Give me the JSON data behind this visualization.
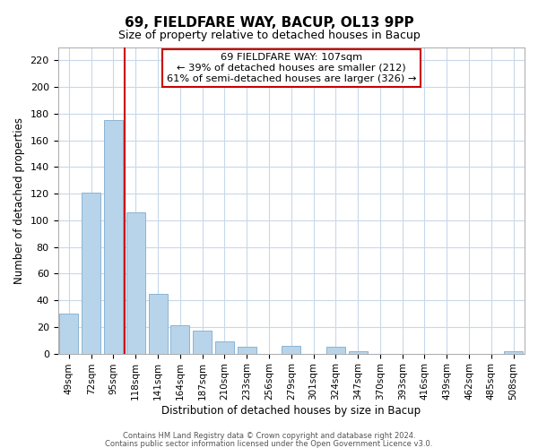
{
  "title": "69, FIELDFARE WAY, BACUP, OL13 9PP",
  "subtitle": "Size of property relative to detached houses in Bacup",
  "xlabel": "Distribution of detached houses by size in Bacup",
  "ylabel": "Number of detached properties",
  "bin_labels": [
    "49sqm",
    "72sqm",
    "95sqm",
    "118sqm",
    "141sqm",
    "164sqm",
    "187sqm",
    "210sqm",
    "233sqm",
    "256sqm",
    "279sqm",
    "301sqm",
    "324sqm",
    "347sqm",
    "370sqm",
    "393sqm",
    "416sqm",
    "439sqm",
    "462sqm",
    "485sqm",
    "508sqm"
  ],
  "bar_heights": [
    30,
    121,
    175,
    106,
    45,
    21,
    17,
    9,
    5,
    0,
    6,
    0,
    5,
    2,
    0,
    0,
    0,
    0,
    0,
    0,
    2
  ],
  "bar_color": "#b8d4ea",
  "bar_edge_color": "#8ab4d4",
  "vline_x": 2.52,
  "vline_color": "#cc0000",
  "ylim": [
    0,
    230
  ],
  "yticks": [
    0,
    20,
    40,
    60,
    80,
    100,
    120,
    140,
    160,
    180,
    200,
    220
  ],
  "annotation_title": "69 FIELDFARE WAY: 107sqm",
  "annotation_line1": "← 39% of detached houses are smaller (212)",
  "annotation_line2": "61% of semi-detached houses are larger (326) →",
  "annotation_box_color": "#ffffff",
  "annotation_box_edge": "#cc0000",
  "footer1": "Contains HM Land Registry data © Crown copyright and database right 2024.",
  "footer2": "Contains public sector information licensed under the Open Government Licence v3.0.",
  "background_color": "#ffffff",
  "grid_color": "#c8d8ea"
}
